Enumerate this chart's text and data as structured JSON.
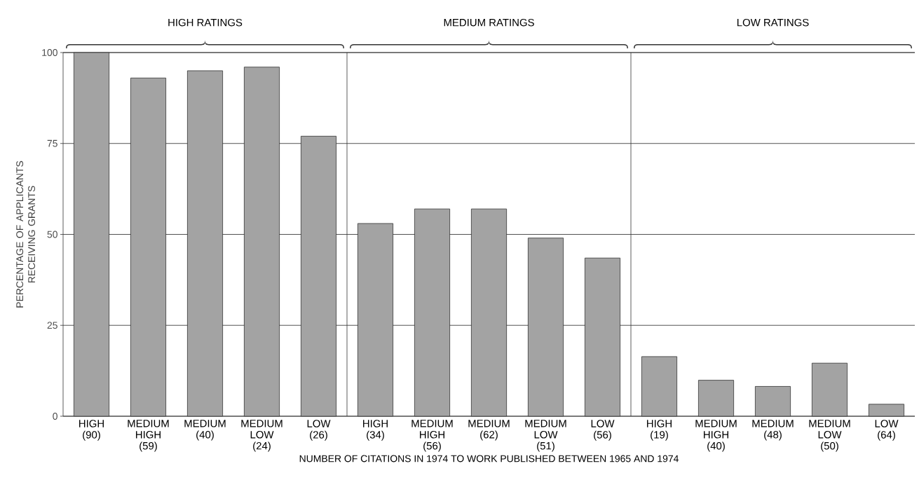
{
  "chart_data": {
    "type": "bar",
    "xlabel": "NUMBER OF CITATIONS IN 1974 TO WORK PUBLISHED BETWEEN 1965 AND 1974",
    "ylabel": "PERCENTAGE OF APPLICANTS RECEIVING GRANTS",
    "categories": [
      "HIGH (90)",
      "MEDIUM HIGH (59)",
      "MEDIUM (40)",
      "MEDIUM LOW (24)",
      "LOW (26)",
      "HIGH (34)",
      "MEDIUM HIGH (56)",
      "MEDIUM (62)",
      "MEDIUM LOW (51)",
      "LOW (56)",
      "HIGH (19)",
      "MEDIUM HIGH (40)",
      "MEDIUM (48)",
      "MEDIUM LOW (50)",
      "LOW (64)"
    ],
    "values": [
      100,
      93,
      95,
      96,
      77,
      53,
      57,
      57,
      49,
      43.5,
      16.4,
      9.9,
      8.2,
      14.6,
      3.3
    ],
    "color": "#a3a3a3",
    "ylim": [
      0,
      100
    ],
    "yticks": [
      0,
      25,
      50,
      75,
      100
    ],
    "grid": "y",
    "annotations": [
      "HIGH RATINGS",
      "MEDIUM RATINGS",
      "LOW RATINGS"
    ]
  }
}
